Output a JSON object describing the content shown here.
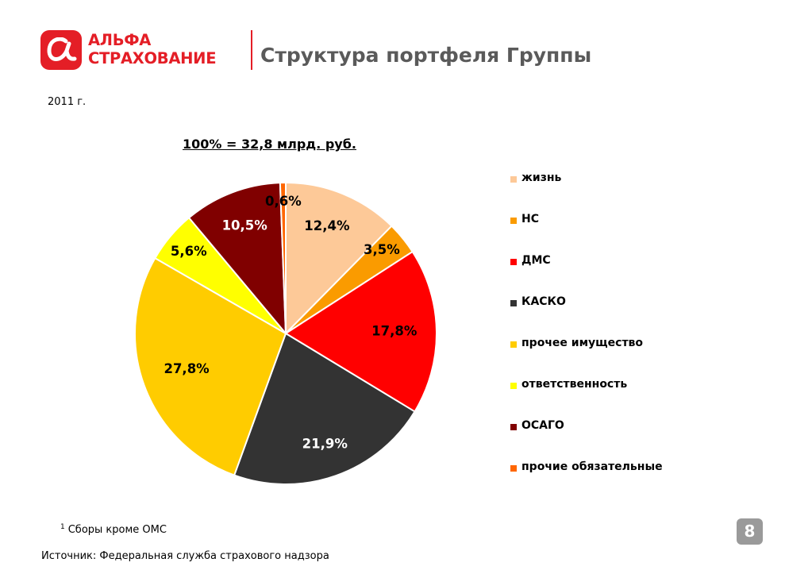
{
  "logo": {
    "line1": "АЛЬФА",
    "line2": "СТРАХОВАНИЕ",
    "brand_color": "#e41e26",
    "icon": "alpha-icon"
  },
  "title": "Структура портфеля Группы",
  "year": "2011 г.",
  "footnote": {
    "mark": "1",
    "text": "Сборы кроме ОМС"
  },
  "source": "Источник: Федеральная служба страхового надзора",
  "page_number": "8",
  "chart_data": {
    "type": "pie",
    "title": "100% = 32,8 млрд. руб.",
    "legend_position": "right",
    "slices": [
      {
        "name": "жизнь",
        "value": 12.4,
        "label": "12,4%",
        "color": "#fdc998",
        "label_color": "#000000"
      },
      {
        "name": "НС",
        "value": 3.5,
        "label": "3,5%",
        "color": "#fa9b00",
        "label_color": "#000000"
      },
      {
        "name": "ДМС",
        "value": 17.8,
        "label": "17,8%",
        "color": "#ff0000",
        "label_color": "#000000"
      },
      {
        "name": "КАСКО",
        "value": 21.9,
        "label": "21,9%",
        "color": "#333333",
        "label_color": "#ffffff"
      },
      {
        "name": "прочее имущество",
        "value": 27.8,
        "label": "27,8%",
        "color": "#ffcc00",
        "label_color": "#000000"
      },
      {
        "name": "ответственность",
        "value": 5.6,
        "label": "5,6%",
        "color": "#ffff00",
        "label_color": "#000000"
      },
      {
        "name": "ОСАГО",
        "value": 10.5,
        "label": "10,5%",
        "color": "#800000",
        "label_color": "#ffffff"
      },
      {
        "name": "прочие обязательные",
        "value": 0.6,
        "label": "0,6%",
        "color": "#ff6600",
        "label_color": "#000000"
      }
    ]
  }
}
